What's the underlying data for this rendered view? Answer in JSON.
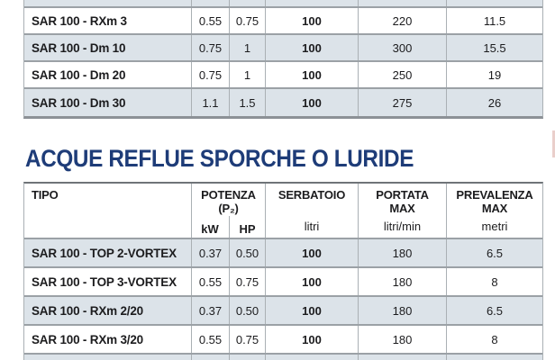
{
  "section": {
    "title": "ACQUE REFLUE SPORCHE O LURIDE",
    "title_color": "#1e3c78"
  },
  "colors": {
    "row_alternate": "#dce3e9",
    "grid_border": "#9ba1a6",
    "heavy_border": "#6f7478",
    "heading_navy": "#1e3c78"
  },
  "lower_table": {
    "header": {
      "tipo": "TIPO",
      "potenza": "POTENZA",
      "potenza_sub": "(P₂)",
      "serbatoio": "SERBATOIO",
      "portata_line1": "PORTATA",
      "portata_line2": "MAX",
      "prevalenza_line1": "PREVALENZA",
      "prevalenza_line2": "MAX"
    },
    "units": {
      "kw": "kW",
      "hp": "HP",
      "serbatoio": "litri",
      "portata": "litri/min",
      "prevalenza": "metri"
    },
    "rows": [
      {
        "tipo": "SAR 100 - TOP 2-VORTEX",
        "kw": "0.37",
        "hp": "0.50",
        "serbatoio": "100",
        "portata": "180",
        "prevalenza": "6.5"
      },
      {
        "tipo": "SAR 100 - TOP 3-VORTEX",
        "kw": "0.55",
        "hp": "0.75",
        "serbatoio": "100",
        "portata": "180",
        "prevalenza": "8"
      },
      {
        "tipo": "SAR 100 - RXm 2/20",
        "kw": "0.37",
        "hp": "0.50",
        "serbatoio": "100",
        "portata": "180",
        "prevalenza": "6.5"
      },
      {
        "tipo": "SAR 100 - RXm 3/20",
        "kw": "0.55",
        "hp": "0.75",
        "serbatoio": "100",
        "portata": "180",
        "prevalenza": "8"
      }
    ]
  },
  "upper_table": {
    "rows": [
      {
        "tipo": "SAR 100 - RXm 3",
        "kw": "0.55",
        "hp": "0.75",
        "serbatoio": "100",
        "portata": "220",
        "prevalenza": "11.5"
      },
      {
        "tipo": "SAR 100 - Dm 10",
        "kw": "0.75",
        "hp": "1",
        "serbatoio": "100",
        "portata": "300",
        "prevalenza": "15.5"
      },
      {
        "tipo": "SAR 100 - Dm 20",
        "kw": "0.75",
        "hp": "1",
        "serbatoio": "100",
        "portata": "250",
        "prevalenza": "19"
      },
      {
        "tipo": "SAR 100 - Dm 30",
        "kw": "1.1",
        "hp": "1.5",
        "serbatoio": "100",
        "portata": "275",
        "prevalenza": "26"
      }
    ]
  }
}
